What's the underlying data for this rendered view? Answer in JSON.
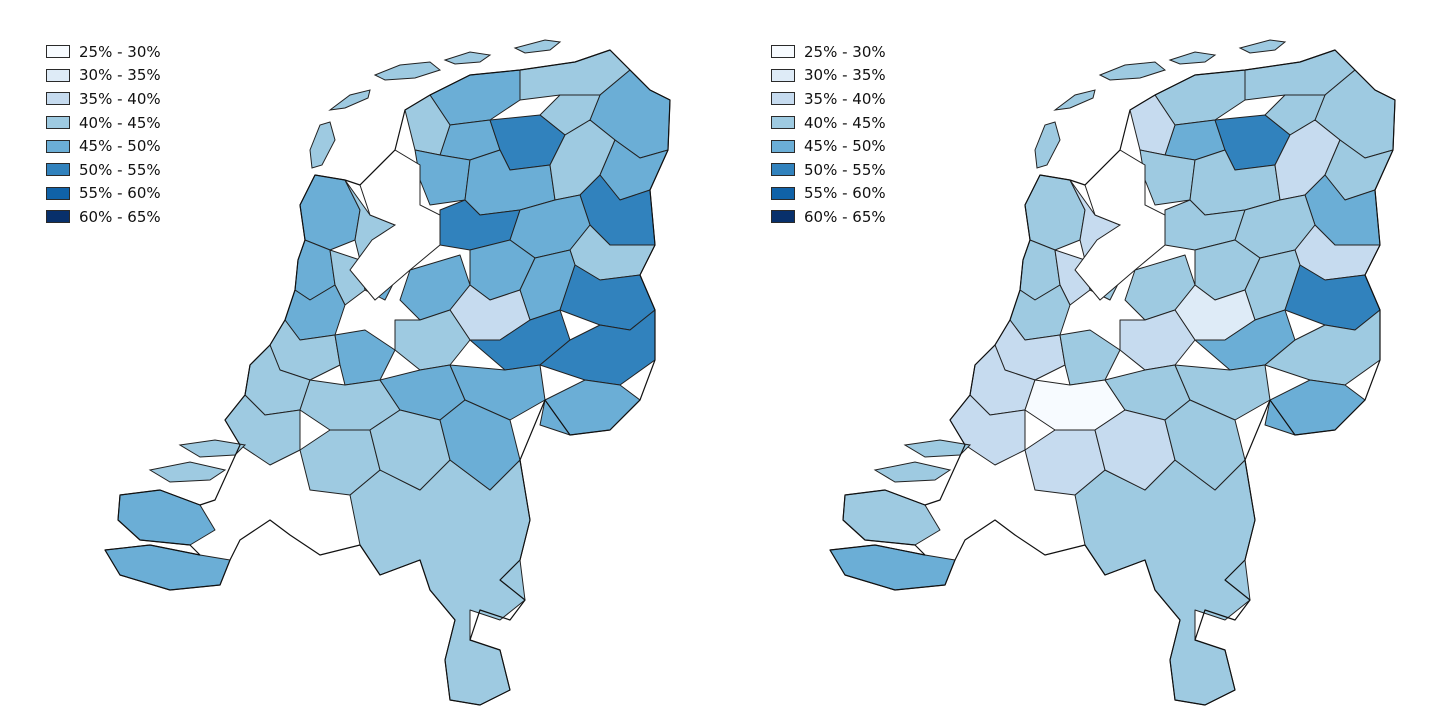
{
  "legend": {
    "classes": [
      {
        "label": "25% - 30%",
        "color": "#f7fbff"
      },
      {
        "label": "30% - 35%",
        "color": "#deebf7"
      },
      {
        "label": "35% - 40%",
        "color": "#c6dbef"
      },
      {
        "label": "40% - 45%",
        "color": "#9ecae1"
      },
      {
        "label": "45% - 50%",
        "color": "#6baed6"
      },
      {
        "label": "50% - 55%",
        "color": "#3182bd"
      },
      {
        "label": "55% - 60%",
        "color": "#1062a8"
      },
      {
        "label": "60% - 65%",
        "color": "#08306b"
      }
    ]
  },
  "maps": [
    {
      "region_classes": [
        4,
        3,
        4,
        3,
        4,
        5,
        3,
        4,
        4,
        3,
        4,
        5,
        5,
        4,
        3,
        4,
        4,
        5,
        4,
        3,
        4,
        3,
        4,
        4,
        2,
        3,
        5,
        5,
        4,
        3,
        4,
        3,
        3,
        4,
        4,
        4,
        3,
        3,
        3,
        4,
        4,
        4
      ]
    },
    {
      "region_classes": [
        3,
        3,
        3,
        3,
        4,
        5,
        2,
        3,
        3,
        2,
        3,
        4,
        3,
        3,
        2,
        3,
        3,
        5,
        3,
        2,
        3,
        2,
        3,
        3,
        1,
        2,
        4,
        3,
        3,
        2,
        3,
        2,
        0,
        3,
        3,
        4,
        2,
        2,
        2,
        3,
        3,
        4
      ]
    }
  ]
}
